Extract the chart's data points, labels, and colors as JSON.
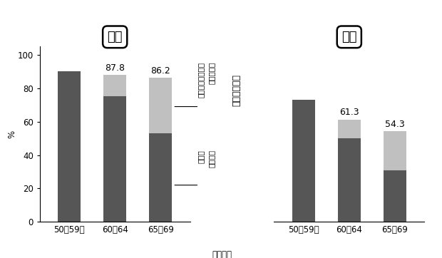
{
  "male_categories": [
    "50～59歳",
    "60～64",
    "65～69"
  ],
  "female_categories": [
    "50～59歳",
    "60～64",
    "65～69"
  ],
  "male_actual": [
    90.0,
    75.0,
    53.0
  ],
  "male_potential_extra": [
    0.0,
    12.8,
    33.2
  ],
  "male_total": [
    null,
    87.8,
    86.2
  ],
  "female_actual": [
    73.0,
    50.0,
    31.0
  ],
  "female_potential_extra": [
    0.0,
    11.3,
    23.3
  ],
  "female_total": [
    null,
    61.3,
    54.3
  ],
  "dark_color": "#565656",
  "light_color": "#c0c0c0",
  "title_male": "男性",
  "title_female": "女性",
  "xlabel": "年齢階級",
  "ylabel": "%",
  "ann_raise": "就業率の引き上げ\nられる余地",
  "ann_actual": "実際の\n就業率",
  "ann_potential": "潜在的就業率",
  "bar_width": 0.5,
  "ylim": [
    0,
    105
  ],
  "yticks": [
    0,
    20,
    40,
    60,
    80,
    100
  ]
}
